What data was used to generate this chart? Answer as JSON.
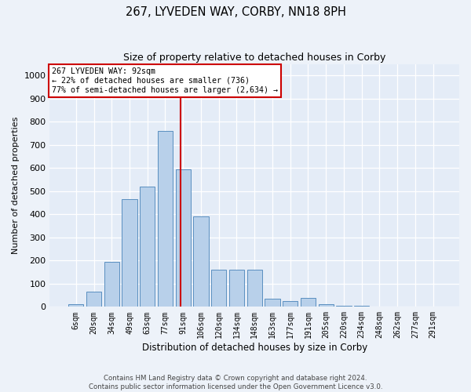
{
  "title": "267, LYVEDEN WAY, CORBY, NN18 8PH",
  "subtitle": "Size of property relative to detached houses in Corby",
  "xlabel": "Distribution of detached houses by size in Corby",
  "ylabel": "Number of detached properties",
  "categories": [
    "6sqm",
    "20sqm",
    "34sqm",
    "49sqm",
    "63sqm",
    "77sqm",
    "91sqm",
    "106sqm",
    "120sqm",
    "134sqm",
    "148sqm",
    "163sqm",
    "177sqm",
    "191sqm",
    "205sqm",
    "220sqm",
    "234sqm",
    "248sqm",
    "262sqm",
    "277sqm",
    "291sqm"
  ],
  "values": [
    10,
    65,
    195,
    465,
    520,
    760,
    595,
    390,
    160,
    160,
    160,
    35,
    25,
    40,
    10,
    5,
    5,
    0,
    0,
    0,
    0
  ],
  "bar_color": "#b8d0ea",
  "bar_edge_color": "#5a8fc0",
  "vline_color": "#cc0000",
  "vline_xidx": 5.85,
  "annotation_text": "267 LYVEDEN WAY: 92sqm\n← 22% of detached houses are smaller (736)\n77% of semi-detached houses are larger (2,634) →",
  "annotation_box_facecolor": "#ffffff",
  "annotation_box_edgecolor": "#cc0000",
  "ylim": [
    0,
    1050
  ],
  "yticks": [
    0,
    100,
    200,
    300,
    400,
    500,
    600,
    700,
    800,
    900,
    1000
  ],
  "footer1": "Contains HM Land Registry data © Crown copyright and database right 2024.",
  "footer2": "Contains public sector information licensed under the Open Government Licence v3.0.",
  "fig_bg_color": "#edf2f9",
  "plot_bg_color": "#e4ecf7"
}
